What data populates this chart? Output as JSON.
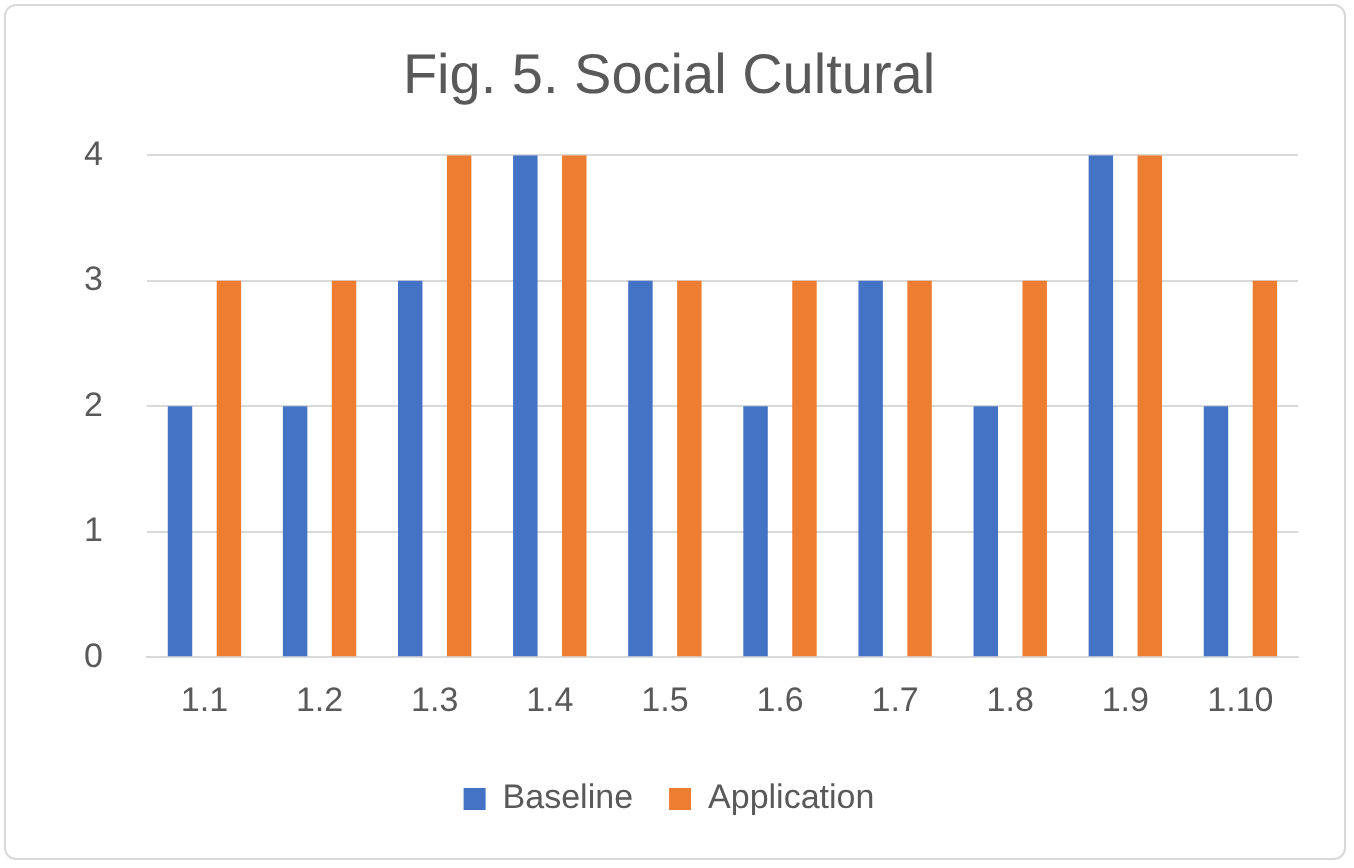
{
  "chart_data": {
    "type": "bar",
    "title": "Fig. 5. Social Cultural",
    "categories": [
      "1.1",
      "1.2",
      "1.3",
      "1.4",
      "1.5",
      "1.6",
      "1.7",
      "1.8",
      "1.9",
      "1.10"
    ],
    "series": [
      {
        "name": "Baseline",
        "color": "#4472c4",
        "values": [
          2,
          2,
          3,
          4,
          3,
          2,
          3,
          2,
          4,
          2
        ]
      },
      {
        "name": "Application",
        "color": "#ed7d31",
        "values": [
          3,
          3,
          4,
          4,
          3,
          3,
          3,
          3,
          4,
          3
        ]
      }
    ],
    "ylim": [
      0,
      4
    ],
    "yticks": [
      0,
      1,
      2,
      3,
      4
    ],
    "grid": "y",
    "legend": "bottom"
  }
}
